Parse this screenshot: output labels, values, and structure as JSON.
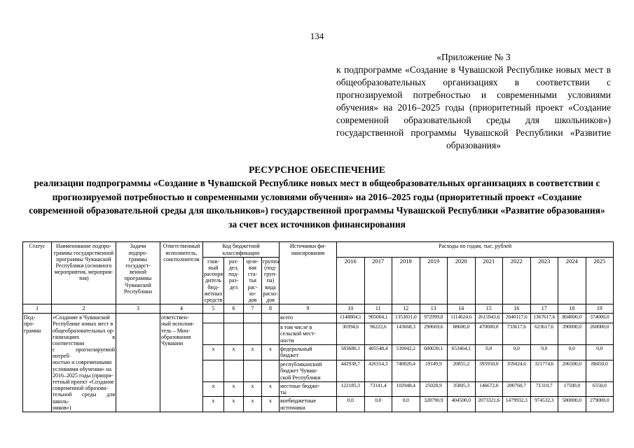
{
  "page": {
    "number": "134"
  },
  "annex": {
    "line1": "«Приложение № 3",
    "paragraph": "к подпрограмме «Создание в Чувашской Республике новых мест в общеобразовательных организациях в соответствии с прогнозируемой потребностью и современными условиями обучения» на 2016–2025 годы (приоритетный проект «Создание современной образовательной среды для школьников») государственной программы Чувашской Республики «Развитие образования»"
  },
  "title": {
    "heading": "РЕСУРСНОЕ ОБЕСПЕЧЕНИЕ",
    "subtitle": "реализации подпрограммы «Создание в Чувашской Республике новых мест в общеобразовательных организациях в соответствии с прогнозируемой потребностью и современными условиями обучения» на 2016–2025 годы (приоритетный проект «Создание современной образовательной среды для школьников») государственной программы Чувашской Республики «Развитие образования» за счет всех источников финансирования"
  },
  "table": {
    "headers": {
      "status": "Статус",
      "name": "Наименование подпро-\nграммы государственной\nпрограммы Чувашской\nРеспублики (основного\nмероприятия, мероприя-\nтия)",
      "tasks": "Задачи\nподпро-\nграммы\nгосударст-\nвенной\nпрограммы\nЧувашской\nРеспублики",
      "executor": "Ответственный\nисполнитель,\nсоисполнители",
      "budget_code": "Код бюджетной\nклассификации",
      "code_cols": [
        "глав-\nный\nраспоря-\nдитель\nбюд-\nжетных\nсредств",
        "раз-\nдел,\nпод-\nраз-\nдел",
        "целе-\nвая\nста-\nтья\nрас-\nхо-\nдов",
        "группа\n(под-\nгруп-\nпа)\nвида\nрасхо-\nдов"
      ],
      "sources": "Источники фи-\nнансирования",
      "expenses": "Расходы по годам, тыс. рублей",
      "years": [
        "2016",
        "2017",
        "2018",
        "2019",
        "2020",
        "2021",
        "2022",
        "2023",
        "2024",
        "2025"
      ]
    },
    "col_numbers": [
      "1",
      "2",
      "3",
      "4",
      "5",
      "6",
      "7",
      "8",
      "9",
      "10",
      "11",
      "12",
      "13",
      "14",
      "15",
      "16",
      "17",
      "18",
      "19"
    ],
    "body": {
      "status": "Под-\nпро-\nграмма",
      "program_name": "«Создание в Чувашской\nРеспублике новых мест в\nобщеобразовательных ор-\nганизациях в соответствии\nс прогнозируемой потреб-\nностью и современными\nусловиями обучения» на\n2016–2025 годы (приори-\nтетный проект «Создание\nсовременной образова-\nтельной среды для школь-\nников»)",
      "tasks": "",
      "executor": "ответствен-\nный исполни-\nтель – Мин-\nобразования\nЧувашии"
    },
    "rows": [
      {
        "source": "всего",
        "codes": [
          "",
          "",
          "",
          ""
        ],
        "values": [
          "1148804,1",
          "905004,1",
          "1353011,0",
          "972999,8",
          "1114624,6",
          "2615943,6",
          "2040117,6",
          "1367617,6",
          "804000,0",
          "374000,0"
        ]
      },
      {
        "source": "в том числе в\nсельской мест-\nности",
        "codes": [
          "",
          "",
          "",
          ""
        ],
        "values": [
          "30394,6",
          "96222,6",
          "143668,3",
          "290669,6",
          "88600,0",
          "470000,0",
          "733617,6",
          "623617,6",
          "390000,0",
          "260000,0"
        ]
      },
      {
        "source": "федеральный\nбюджет",
        "codes": [
          "х",
          "х",
          "х",
          "х"
        ],
        "values": [
          "583680,1",
          "405548,4",
          "510042,2",
          "600030,1",
          "653464,1",
          "0,0",
          "0,0",
          "0,0",
          "0,0",
          "0,0"
        ]
      },
      {
        "source": "республиканский\nбюджет Чуваш-\nской Республики",
        "codes": [
          "",
          "",
          "",
          ""
        ],
        "values": [
          "442938,7",
          "426314,3",
          "740020,4",
          "19149,9",
          "20855,2",
          "395950,0",
          "359424,6",
          "321774,6",
          "206500,0",
          "88450,0"
        ]
      },
      {
        "source": "местные бюдже-\nты",
        "codes": [
          "х",
          "х",
          "х",
          "х"
        ],
        "values": [
          "122185,3",
          "73141,4",
          "102948,4",
          "25028,9",
          "35805,3",
          "146672,0",
          "200760,7",
          "71310,7",
          "17500,0",
          "6550,0"
        ]
      },
      {
        "source": "внебюджетные\nисточники",
        "codes": [
          "х",
          "х",
          "х",
          "х"
        ],
        "values": [
          "0,0",
          "0,0",
          "0,0",
          "328790,9",
          "404500,0",
          "2073321,6",
          "1479932,3",
          "974532,3",
          "580000,0",
          "279000,0"
        ]
      }
    ]
  }
}
